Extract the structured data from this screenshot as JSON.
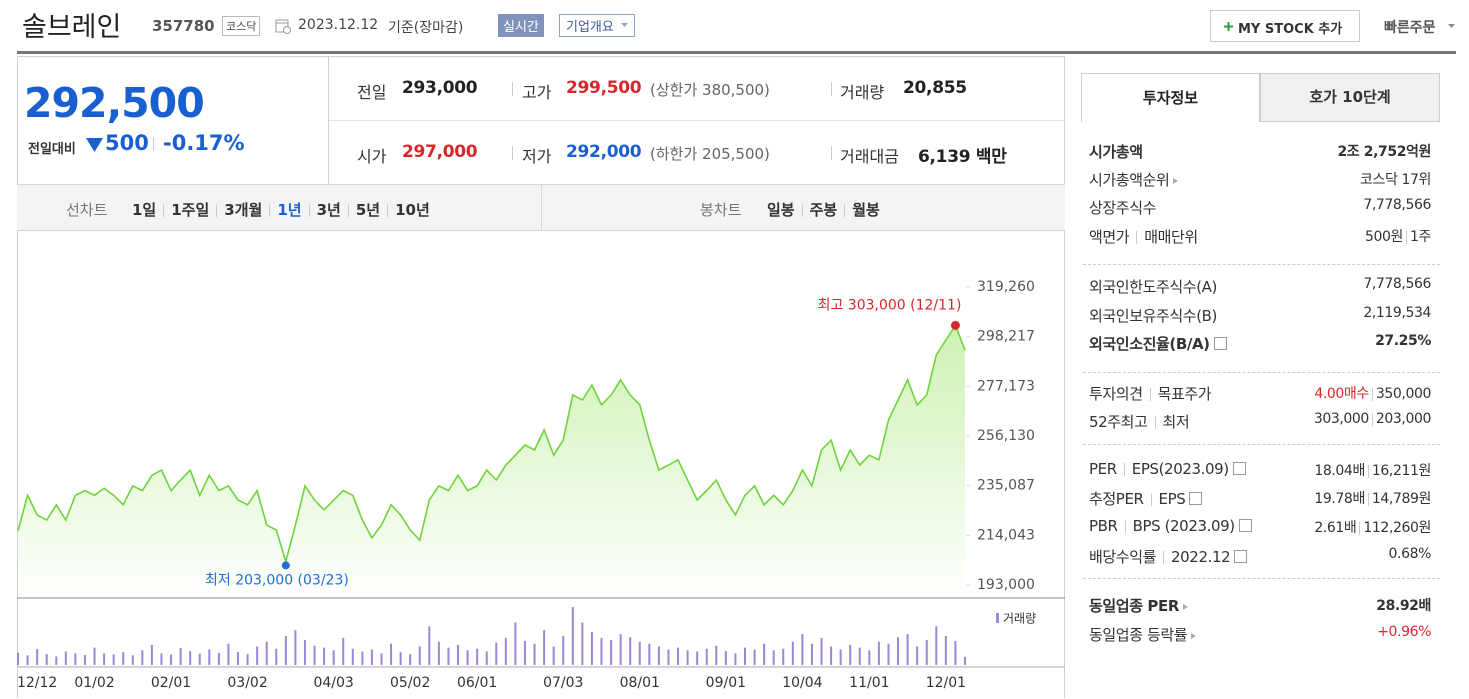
{
  "header": {
    "name": "솔브레인",
    "code": "357780",
    "market": "코스닥",
    "date": "2023.12.12",
    "basis": "기준(장마감)",
    "realtime": "실시간",
    "company_info": "기업개요",
    "my_stock": "MY STOCK 추가",
    "quick_order": "빠른주문"
  },
  "price": {
    "current": "292,500",
    "change_label": "전일대비",
    "change": "500",
    "change_pct": "-0.17%"
  },
  "quote": [
    {
      "label": "전일",
      "value": "293,000"
    },
    {
      "label": "고가",
      "value": "299,500",
      "extra": "(상한가 380,500)"
    },
    {
      "label": "거래량",
      "value": "20,855"
    },
    {
      "label": "시가",
      "value": "297,000"
    },
    {
      "label": "저가",
      "value": "292,000",
      "extra": "(하한가 205,500)"
    },
    {
      "label": "거래대금",
      "value": "6,139 백만"
    }
  ],
  "period_tabs": {
    "line_label": "선차트",
    "line_items": [
      "1일",
      "1주일",
      "3개월",
      "1년",
      "3년",
      "5년",
      "10년"
    ],
    "candle_label": "봉차트",
    "candle_items": [
      "일봉",
      "주봉",
      "월봉"
    ]
  },
  "chart_data": {
    "type": "line",
    "color": "#6fd33c",
    "fill_color": "#c9f0ad",
    "ylim": [
      193000,
      319260
    ],
    "yticks": [
      {
        "value": 193000,
        "label": "193,000"
      },
      {
        "value": 214043,
        "label": "214,043"
      },
      {
        "value": 235087,
        "label": "235,087"
      },
      {
        "value": 256130,
        "label": "256,130"
      },
      {
        "value": 277173,
        "label": "277,173"
      },
      {
        "value": 298217,
        "label": "298,217"
      },
      {
        "value": 319260,
        "label": "319,260"
      }
    ],
    "categories": [
      null,
      null,
      "12/12",
      null,
      null,
      null,
      null,
      null,
      "01/02",
      null,
      null,
      null,
      null,
      null,
      null,
      null,
      "02/01",
      null,
      null,
      null,
      null,
      null,
      null,
      null,
      "03/02",
      null,
      null,
      null,
      null,
      null,
      null,
      null,
      null,
      "04/03",
      null,
      null,
      null,
      null,
      null,
      null,
      null,
      "05/02",
      null,
      null,
      null,
      null,
      null,
      null,
      "06/01",
      null,
      null,
      null,
      null,
      null,
      null,
      null,
      null,
      "07/03",
      null,
      null,
      null,
      null,
      null,
      null,
      null,
      "08/01",
      null,
      null,
      null,
      null,
      null,
      null,
      null,
      null,
      "09/01",
      null,
      null,
      null,
      null,
      null,
      null,
      null,
      "10/04",
      null,
      null,
      null,
      null,
      null,
      null,
      "11/01",
      null,
      null,
      null,
      null,
      null,
      null,
      null,
      "12/01",
      null,
      null
    ],
    "values": [
      216000,
      231000,
      222700,
      220500,
      227000,
      220500,
      231000,
      233000,
      231000,
      234000,
      231000,
      227000,
      235000,
      233000,
      239500,
      241700,
      233000,
      237500,
      241700,
      231000,
      239500,
      233000,
      235000,
      229000,
      227000,
      233000,
      218400,
      216300,
      203000,
      218400,
      235000,
      229000,
      224800,
      229000,
      233000,
      231000,
      220500,
      213000,
      218400,
      227000,
      222700,
      216300,
      212000,
      229000,
      235000,
      233000,
      239500,
      233000,
      235000,
      241700,
      237500,
      243800,
      248000,
      252300,
      250200,
      258700,
      248000,
      254400,
      273500,
      271400,
      277700,
      269300,
      273500,
      279900,
      273500,
      269300,
      254400,
      241700,
      243800,
      246000,
      237500,
      229000,
      233000,
      237500,
      229000,
      222700,
      231000,
      235000,
      227000,
      231000,
      227000,
      233000,
      241700,
      235000,
      250200,
      254400,
      241700,
      250200,
      243800,
      248000,
      246000,
      262900,
      271400,
      279900,
      269300,
      273500,
      290500,
      296800,
      303000,
      292500
    ],
    "annotations": [
      {
        "text": "최고 303,000 (12/11)",
        "color": "#d9262b"
      },
      {
        "text": "최저 203,000 (03/23)",
        "color": "#1f6fd6"
      }
    ],
    "volume": {
      "name": "거래량",
      "color": "#9c86d8",
      "values": [
        32000,
        25000,
        41000,
        28000,
        22000,
        35000,
        30000,
        26000,
        45000,
        30000,
        28000,
        33000,
        25000,
        38000,
        52000,
        30000,
        27000,
        44000,
        36000,
        29000,
        40000,
        31000,
        55000,
        34000,
        28000,
        48000,
        60000,
        42000,
        75000,
        90000,
        65000,
        50000,
        45000,
        38000,
        70000,
        42000,
        35000,
        40000,
        30000,
        55000,
        33000,
        28000,
        48000,
        100000,
        60000,
        45000,
        52000,
        38000,
        42000,
        35000,
        58000,
        70000,
        110000,
        62000,
        55000,
        90000,
        48000,
        75000,
        150000,
        110000,
        85000,
        70000,
        65000,
        80000,
        72000,
        60000,
        55000,
        48000,
        40000,
        45000,
        38000,
        35000,
        42000,
        50000,
        36000,
        30000,
        45000,
        40000,
        55000,
        38000,
        42000,
        60000,
        80000,
        55000,
        70000,
        48000,
        40000,
        52000,
        45000,
        38000,
        60000,
        55000,
        72000,
        80000,
        48000,
        65000,
        100000,
        75000,
        62000,
        20855
      ]
    }
  },
  "info": {
    "tabs": [
      "투자정보",
      "호가 10단계"
    ],
    "groups": [
      {
        "rows": [
          {
            "label": [
              "시가총액"
            ],
            "value": [
              "2조 2,752억원"
            ]
          },
          {
            "label": [
              "시가총액순위"
            ],
            "value": [
              "코스닥 17위"
            ]
          },
          {
            "label": [
              "상장주식수"
            ],
            "value": [
              "7,778,566"
            ]
          },
          {
            "label": [
              "액면가",
              "매매단위"
            ],
            "value": [
              "500원",
              "1주"
            ]
          }
        ]
      },
      {
        "rows": [
          {
            "label": [
              "외국인한도주식수(A)"
            ],
            "value": [
              "7,778,566"
            ]
          },
          {
            "label": [
              "외국인보유주식수(B)"
            ],
            "value": [
              "2,119,534"
            ]
          },
          {
            "label": [
              "외국인소진율(B/A)"
            ],
            "value": [
              "27.25%"
            ]
          }
        ]
      },
      {
        "rows": [
          {
            "label": [
              "투자의견",
              "목표주가"
            ],
            "value": [
              "4.00매수",
              "350,000"
            ]
          },
          {
            "label": [
              "52주최고",
              "최저"
            ],
            "value": [
              "303,000",
              "203,000"
            ]
          }
        ]
      },
      {
        "rows": [
          {
            "label": [
              "PER",
              "EPS(2023.09)"
            ],
            "value": [
              "18.04배",
              "16,211원"
            ]
          },
          {
            "label": [
              "추정PER",
              "EPS"
            ],
            "value": [
              "19.78배",
              "14,789원"
            ]
          },
          {
            "label": [
              "PBR",
              "BPS (2023.09)"
            ],
            "value": [
              "2.61배",
              "112,260원"
            ]
          },
          {
            "label": [
              "배당수익률",
              "2022.12"
            ],
            "value": [
              "0.68%"
            ]
          }
        ]
      },
      {
        "rows": [
          {
            "label": [
              "동일업종 PER"
            ],
            "value": [
              "28.92배"
            ]
          },
          {
            "label": [
              "동일업종 등락률"
            ],
            "value": [
              "+0.96%"
            ]
          }
        ]
      }
    ]
  }
}
